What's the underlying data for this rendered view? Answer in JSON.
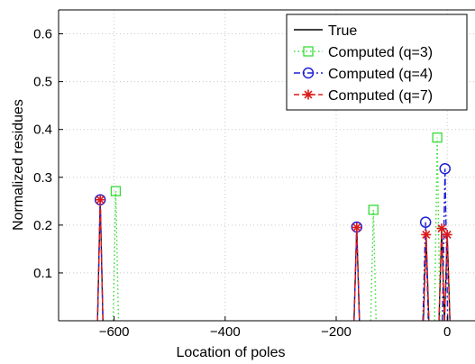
{
  "chart_data": {
    "type": "stem",
    "title": "",
    "xlabel": "Location of poles",
    "ylabel": "Normalized residues",
    "xlim": [
      -700,
      50
    ],
    "ylim": [
      0,
      0.65
    ],
    "xticks": [
      -600,
      -400,
      -200,
      0
    ],
    "xtick_labels": [
      "−600",
      "−400",
      "−200",
      "0"
    ],
    "yticks": [
      0.1,
      0.2,
      0.3,
      0.4,
      0.5,
      0.6
    ],
    "ytick_labels": [
      "0.1",
      "0.2",
      "0.3",
      "0.4",
      "0.5",
      "0.6"
    ],
    "grid": true,
    "legend_position": "top-right",
    "series": [
      {
        "name": "True",
        "style": "solid",
        "marker": "none",
        "color": "#000000",
        "x": [
          -625,
          -163,
          -38,
          -10,
          0
        ],
        "y": [
          0.253,
          0.195,
          0.18,
          0.193,
          0.18
        ]
      },
      {
        "name": "Computed (q=3)",
        "style": "dotted",
        "marker": "square",
        "color": "#33dd33",
        "x": [
          -597,
          -133,
          -18
        ],
        "y": [
          0.271,
          0.232,
          0.383
        ]
      },
      {
        "name": "Computed (q=4)",
        "style": "dashdot",
        "marker": "circle",
        "color": "#1f1fd6",
        "x": [
          -625,
          -163,
          -39,
          -4
        ],
        "y": [
          0.253,
          0.196,
          0.206,
          0.318
        ]
      },
      {
        "name": "Computed (q=7)",
        "style": "dashed",
        "marker": "star",
        "color": "#dd1a1a",
        "x": [
          -625,
          -163,
          -38,
          -10,
          0
        ],
        "y": [
          0.253,
          0.195,
          0.18,
          0.193,
          0.18
        ]
      }
    ]
  }
}
